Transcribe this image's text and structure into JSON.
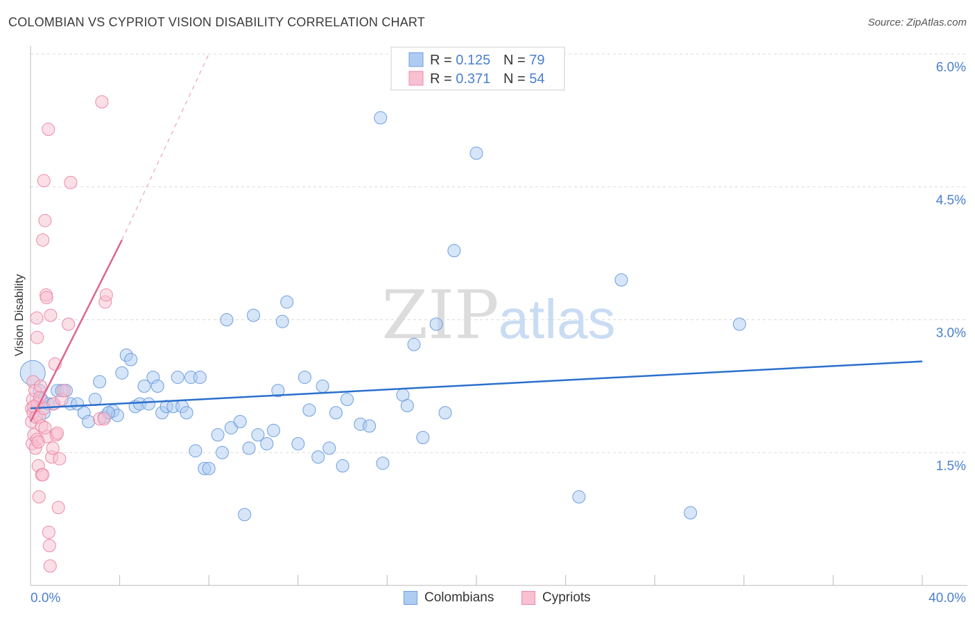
{
  "title": "COLOMBIAN VS CYPRIOT VISION DISABILITY CORRELATION CHART",
  "source": "Source: ZipAtlas.com",
  "colors": {
    "blue_fill": "#aecbf2",
    "blue_stroke": "#6d9ee0",
    "blue_line": "#2a6fcc",
    "pink_fill": "#f8c0d0",
    "pink_stroke": "#ec8aa8",
    "pink_line": "#e0648f",
    "axis_text": "#4a7fcf",
    "grid": "#d9d9d9"
  },
  "chart_data": {
    "type": "scatter",
    "title": "COLOMBIAN VS CYPRIOT VISION DISABILITY CORRELATION CHART",
    "xlabel": "",
    "ylabel": "Vision Disability",
    "xlim": [
      0,
      40
    ],
    "ylim": [
      0,
      6.0
    ],
    "x_tick_labels": [
      "0.0%",
      "40.0%"
    ],
    "y_ticks": [
      1.5,
      3.0,
      4.5,
      6.0
    ],
    "y_tick_labels": [
      "1.5%",
      "3.0%",
      "4.5%",
      "6.0%"
    ],
    "grid": true,
    "watermark": {
      "zip": "ZIP",
      "atlas": "atlas"
    },
    "legend_stats": [
      {
        "r_label": "R = ",
        "r_value": "0.125",
        "n_label": "N = ",
        "n_value": "79"
      },
      {
        "r_label": "R = ",
        "r_value": "0.371",
        "n_label": "N = ",
        "n_value": "54"
      }
    ],
    "series": [
      {
        "name": "Colombians",
        "trend": {
          "x0": 0,
          "y0": 2.0,
          "x1": 40,
          "y1": 2.53,
          "dashed_from": null
        },
        "points": [
          [
            0.1,
            2.4
          ],
          [
            0.4,
            2.2
          ],
          [
            0.5,
            2.1
          ],
          [
            0.6,
            1.95
          ],
          [
            0.8,
            2.05
          ],
          [
            1.0,
            2.05
          ],
          [
            1.2,
            2.2
          ],
          [
            1.4,
            2.2
          ],
          [
            1.6,
            2.2
          ],
          [
            1.8,
            2.05
          ],
          [
            2.1,
            2.05
          ],
          [
            2.4,
            1.95
          ],
          [
            2.6,
            1.85
          ],
          [
            2.9,
            2.1
          ],
          [
            3.1,
            2.3
          ],
          [
            3.3,
            1.9
          ],
          [
            3.5,
            1.95
          ],
          [
            3.7,
            1.97
          ],
          [
            3.9,
            1.92
          ],
          [
            4.1,
            2.4
          ],
          [
            4.3,
            2.6
          ],
          [
            4.5,
            2.55
          ],
          [
            4.7,
            2.02
          ],
          [
            4.9,
            2.05
          ],
          [
            5.1,
            2.25
          ],
          [
            5.3,
            2.05
          ],
          [
            5.5,
            2.35
          ],
          [
            5.7,
            2.25
          ],
          [
            5.9,
            1.95
          ],
          [
            6.1,
            2.02
          ],
          [
            6.4,
            2.02
          ],
          [
            6.6,
            2.35
          ],
          [
            6.8,
            2.02
          ],
          [
            7.0,
            1.95
          ],
          [
            7.2,
            2.35
          ],
          [
            7.4,
            1.52
          ],
          [
            7.6,
            2.35
          ],
          [
            7.8,
            1.32
          ],
          [
            8.0,
            1.32
          ],
          [
            8.4,
            1.7
          ],
          [
            8.6,
            1.5
          ],
          [
            8.8,
            3.0
          ],
          [
            9.0,
            1.78
          ],
          [
            9.4,
            1.85
          ],
          [
            9.6,
            0.8
          ],
          [
            9.8,
            1.55
          ],
          [
            10.0,
            3.05
          ],
          [
            10.2,
            1.7
          ],
          [
            10.6,
            1.6
          ],
          [
            10.9,
            1.75
          ],
          [
            11.1,
            2.2
          ],
          [
            11.3,
            2.98
          ],
          [
            11.5,
            3.2
          ],
          [
            12.0,
            1.6
          ],
          [
            12.3,
            2.35
          ],
          [
            12.5,
            1.98
          ],
          [
            12.9,
            1.45
          ],
          [
            13.1,
            2.25
          ],
          [
            13.4,
            1.55
          ],
          [
            13.7,
            1.95
          ],
          [
            14.0,
            1.35
          ],
          [
            14.2,
            2.1
          ],
          [
            14.8,
            1.82
          ],
          [
            15.2,
            1.8
          ],
          [
            15.8,
            1.38
          ],
          [
            16.7,
            2.15
          ],
          [
            16.9,
            2.03
          ],
          [
            17.2,
            2.72
          ],
          [
            17.6,
            1.67
          ],
          [
            18.2,
            2.95
          ],
          [
            18.6,
            1.95
          ],
          [
            19.0,
            3.78
          ],
          [
            15.7,
            5.28
          ],
          [
            20.0,
            4.88
          ],
          [
            24.6,
            1.0
          ],
          [
            26.5,
            3.45
          ],
          [
            29.6,
            0.82
          ],
          [
            31.8,
            2.95
          ],
          [
            3.5,
            1.95
          ]
        ]
      },
      {
        "name": "Cypriots",
        "trend": {
          "x0": 0,
          "y0": 1.85,
          "x1": 4.1,
          "y1": 3.9,
          "dashed_from": [
            4.1,
            3.9
          ],
          "dashed_to": [
            8.0,
            6.0
          ]
        },
        "points": [
          [
            0.05,
            2.0
          ],
          [
            0.05,
            1.85
          ],
          [
            0.08,
            1.6
          ],
          [
            0.1,
            2.1
          ],
          [
            0.12,
            2.3
          ],
          [
            0.12,
            1.95
          ],
          [
            0.15,
            1.7
          ],
          [
            0.2,
            2.2
          ],
          [
            0.22,
            1.55
          ],
          [
            0.25,
            1.9
          ],
          [
            0.28,
            3.02
          ],
          [
            0.3,
            2.8
          ],
          [
            0.3,
            1.65
          ],
          [
            0.32,
            2.05
          ],
          [
            0.35,
            1.35
          ],
          [
            0.38,
            1.0
          ],
          [
            0.4,
            1.9
          ],
          [
            0.45,
            2.25
          ],
          [
            0.5,
            1.25
          ],
          [
            0.5,
            1.8
          ],
          [
            0.55,
            3.9
          ],
          [
            0.6,
            4.57
          ],
          [
            0.65,
            4.12
          ],
          [
            0.7,
            3.28
          ],
          [
            0.72,
            3.25
          ],
          [
            0.75,
            1.68
          ],
          [
            0.8,
            5.15
          ],
          [
            0.82,
            0.6
          ],
          [
            0.85,
            0.45
          ],
          [
            0.88,
            0.22
          ],
          [
            0.9,
            3.05
          ],
          [
            0.95,
            1.45
          ],
          [
            1.0,
            1.55
          ],
          [
            1.05,
            2.05
          ],
          [
            1.1,
            2.5
          ],
          [
            1.15,
            1.7
          ],
          [
            1.2,
            1.72
          ],
          [
            1.25,
            0.88
          ],
          [
            1.3,
            1.43
          ],
          [
            1.4,
            2.1
          ],
          [
            1.5,
            2.2
          ],
          [
            1.7,
            2.95
          ],
          [
            0.55,
            1.25
          ],
          [
            0.6,
            2.0
          ],
          [
            1.8,
            4.55
          ],
          [
            3.1,
            1.88
          ],
          [
            3.3,
            1.88
          ],
          [
            3.35,
            3.2
          ],
          [
            3.4,
            3.28
          ],
          [
            3.2,
            5.46
          ],
          [
            0.35,
            1.62
          ],
          [
            0.42,
            2.12
          ],
          [
            0.65,
            1.78
          ],
          [
            0.15,
            2.02
          ]
        ]
      }
    ]
  }
}
